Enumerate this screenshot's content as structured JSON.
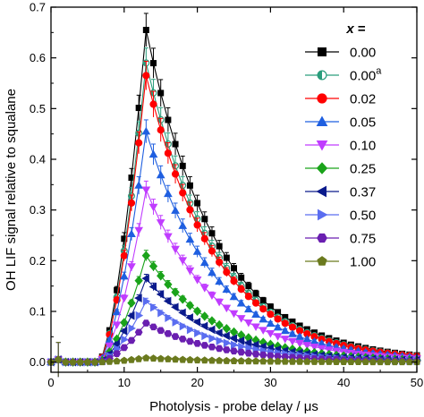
{
  "chart_data": {
    "type": "line",
    "xlabel": "Photolysis - probe delay / μs",
    "ylabel": "OH LIF signal relative to squalane",
    "xlim": [
      0,
      50
    ],
    "ylim": [
      -0.02,
      0.7
    ],
    "x_ticks": [
      "0",
      "10",
      "20",
      "30",
      "40",
      "50"
    ],
    "y_ticks": [
      "0.0",
      "0.1",
      "0.2",
      "0.3",
      "0.4",
      "0.5",
      "0.6",
      "0.7"
    ],
    "legend": {
      "title_var": "x",
      "title_eq": " =",
      "placement": "top-right"
    },
    "peak_x": 13,
    "x": [
      0,
      1,
      2,
      3,
      4,
      5,
      6,
      7,
      8,
      9,
      10,
      11,
      12,
      13,
      14,
      15,
      16,
      17,
      18,
      19,
      20,
      21,
      22,
      23,
      24,
      25,
      26,
      27,
      28,
      29,
      30,
      31,
      32,
      33,
      34,
      35,
      36,
      37,
      38,
      39,
      40,
      41,
      42,
      43,
      44,
      45,
      46,
      47,
      48,
      49,
      50
    ],
    "series": [
      {
        "name": "0.00",
        "superscript": "",
        "peak": 0.655,
        "color": "#000000",
        "marker": "square"
      },
      {
        "name": "0.00",
        "superscript": "a",
        "peak": 0.59,
        "color": "#2a9d7c",
        "marker": "half-circle"
      },
      {
        "name": "0.02",
        "superscript": "",
        "peak": 0.565,
        "color": "#ff0000",
        "marker": "circle"
      },
      {
        "name": "0.05",
        "superscript": "",
        "peak": 0.455,
        "color": "#1f5fe0",
        "marker": "triangle-up"
      },
      {
        "name": "0.10",
        "superscript": "",
        "peak": 0.34,
        "color": "#c03cff",
        "marker": "triangle-down"
      },
      {
        "name": "0.25",
        "superscript": "",
        "peak": 0.21,
        "color": "#1aa31a",
        "marker": "diamond"
      },
      {
        "name": "0.37",
        "superscript": "",
        "peak": 0.165,
        "color": "#0a1a8c",
        "marker": "triangle-left"
      },
      {
        "name": "0.50",
        "superscript": "",
        "peak": 0.12,
        "color": "#5a6df0",
        "marker": "triangle-right"
      },
      {
        "name": "0.75",
        "superscript": "",
        "peak": 0.077,
        "color": "#6a1fb0",
        "marker": "hexagon"
      },
      {
        "name": "1.00",
        "superscript": "",
        "peak": 0.008,
        "color": "#6b7a1e",
        "marker": "pentagon"
      }
    ]
  }
}
